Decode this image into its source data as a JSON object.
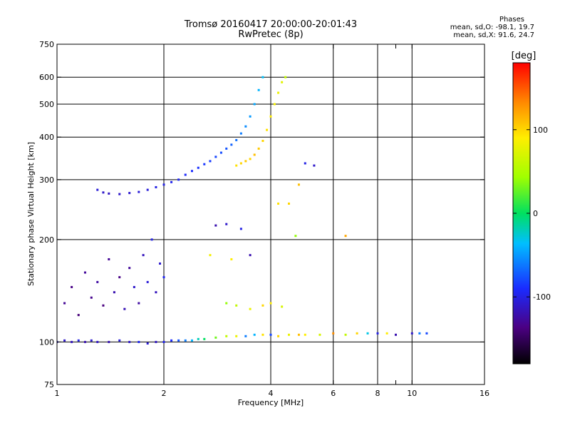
{
  "header": {
    "title_line1": "Tromsø 20160417 20:00:00-20:01:43",
    "title_line2": "RwPretec (8p)"
  },
  "stats": {
    "heading": "Phases",
    "o_line": "mean, sd,O:  -98.1, 19.7",
    "x_line": "mean, sd,X:   91.6, 24.7"
  },
  "chart_data": {
    "type": "scatter",
    "xlabel": "Frequency [MHz]",
    "ylabel": "Stationary phase Virtual Height [km]",
    "xscale": "log",
    "yscale": "log",
    "xlim": [
      1,
      16
    ],
    "ylim": [
      75,
      750
    ],
    "xticks": [
      1,
      2,
      4,
      6,
      8,
      9,
      10,
      16
    ],
    "xtick_labels": [
      "1",
      "2",
      "4",
      "6",
      "8",
      "",
      "10",
      "16"
    ],
    "yticks": [
      75,
      100,
      200,
      300,
      400,
      500,
      600,
      750
    ],
    "ytick_labels": [
      "75",
      "100",
      "200",
      "300",
      "400",
      "500",
      "600",
      "750"
    ],
    "grid_x": [
      2,
      4,
      6,
      8,
      10
    ],
    "grid_y": [
      100,
      200,
      300,
      400,
      500,
      600
    ],
    "grid": true,
    "colorbar": {
      "label": "[deg]",
      "range": [
        -180,
        180
      ],
      "ticks": [
        -100,
        0,
        100
      ],
      "tick_labels": [
        "-100",
        "0",
        "100"
      ],
      "colormap": "rainbow"
    },
    "series": [
      {
        "values": [
          [
            1.0,
            100,
            -105
          ],
          [
            1.05,
            101,
            -110
          ],
          [
            1.1,
            100,
            -115
          ],
          [
            1.15,
            101,
            -100
          ],
          [
            1.2,
            100,
            -120
          ],
          [
            1.25,
            101,
            -108
          ],
          [
            1.3,
            100,
            -112
          ],
          [
            1.4,
            100,
            -118
          ],
          [
            1.5,
            101,
            -104
          ],
          [
            1.6,
            100,
            -110
          ],
          [
            1.7,
            100,
            -95
          ],
          [
            1.8,
            99,
            -106
          ],
          [
            1.9,
            100,
            -112
          ],
          [
            2.0,
            100,
            -98
          ],
          [
            2.1,
            101,
            -90
          ],
          [
            2.2,
            101,
            -75
          ],
          [
            2.3,
            101,
            -60
          ],
          [
            2.4,
            101,
            -40
          ],
          [
            2.5,
            102,
            -20
          ],
          [
            2.6,
            102,
            0
          ],
          [
            2.8,
            103,
            30
          ],
          [
            3.0,
            104,
            60
          ],
          [
            3.2,
            104,
            80
          ],
          [
            3.4,
            104,
            -60
          ],
          [
            3.6,
            105,
            -40
          ],
          [
            3.8,
            105,
            95
          ],
          [
            4.0,
            105,
            -80
          ],
          [
            4.2,
            104,
            100
          ],
          [
            4.5,
            105,
            80
          ],
          [
            4.8,
            105,
            110
          ],
          [
            5.0,
            105,
            90
          ],
          [
            5.5,
            105,
            70
          ],
          [
            6.0,
            106,
            130
          ],
          [
            6.5,
            105,
            60
          ],
          [
            7.0,
            106,
            100
          ],
          [
            7.5,
            106,
            -30
          ],
          [
            8.0,
            106,
            -100
          ],
          [
            8.5,
            106,
            90
          ],
          [
            9.0,
            105,
            -120
          ],
          [
            10.0,
            106,
            -110
          ],
          [
            10.5,
            106,
            -60
          ],
          [
            11.0,
            106,
            -80
          ]
        ]
      },
      {
        "values": [
          [
            1.05,
            130,
            -130
          ],
          [
            1.1,
            145,
            -135
          ],
          [
            1.15,
            120,
            -140
          ],
          [
            1.2,
            160,
            -128
          ],
          [
            1.25,
            135,
            -132
          ],
          [
            1.3,
            150,
            -125
          ],
          [
            1.35,
            128,
            -138
          ],
          [
            1.4,
            175,
            -130
          ],
          [
            1.45,
            140,
            -120
          ],
          [
            1.5,
            155,
            -135
          ],
          [
            1.55,
            125,
            -118
          ],
          [
            1.6,
            165,
            -128
          ],
          [
            1.65,
            145,
            -110
          ],
          [
            1.7,
            130,
            -125
          ],
          [
            1.75,
            180,
            -115
          ],
          [
            1.8,
            150,
            -105
          ],
          [
            1.85,
            200,
            -100
          ],
          [
            1.9,
            140,
            -115
          ],
          [
            1.95,
            170,
            -108
          ],
          [
            2.0,
            155,
            -95
          ]
        ]
      },
      {
        "values": [
          [
            1.3,
            280,
            -105
          ],
          [
            1.35,
            275,
            -110
          ],
          [
            1.4,
            273,
            -112
          ],
          [
            1.5,
            272,
            -110
          ],
          [
            1.6,
            274,
            -108
          ],
          [
            1.7,
            276,
            -105
          ],
          [
            1.8,
            280,
            -104
          ],
          [
            1.9,
            285,
            -100
          ],
          [
            2.0,
            290,
            -100
          ],
          [
            2.1,
            295,
            -98
          ],
          [
            2.2,
            300,
            -95
          ],
          [
            2.3,
            310,
            -92
          ],
          [
            2.4,
            318,
            -90
          ],
          [
            2.5,
            325,
            -88
          ],
          [
            2.6,
            333,
            -86
          ],
          [
            2.7,
            340,
            -84
          ],
          [
            2.8,
            350,
            -80
          ],
          [
            2.9,
            360,
            -78
          ],
          [
            3.0,
            370,
            -75
          ],
          [
            3.1,
            380,
            -70
          ],
          [
            3.2,
            392,
            -65
          ],
          [
            3.3,
            410,
            -60
          ],
          [
            3.4,
            430,
            -55
          ],
          [
            3.5,
            460,
            -50
          ],
          [
            3.6,
            500,
            -45
          ],
          [
            3.7,
            550,
            -40
          ],
          [
            3.8,
            600,
            -35
          ]
        ]
      },
      {
        "values": [
          [
            3.2,
            330,
            95
          ],
          [
            3.3,
            335,
            100
          ],
          [
            3.4,
            340,
            105
          ],
          [
            3.5,
            345,
            100
          ],
          [
            3.6,
            355,
            110
          ],
          [
            3.7,
            370,
            105
          ],
          [
            3.8,
            390,
            100
          ],
          [
            3.9,
            420,
            95
          ],
          [
            4.0,
            460,
            90
          ],
          [
            4.1,
            500,
            85
          ],
          [
            4.2,
            540,
            80
          ],
          [
            4.3,
            580,
            75
          ],
          [
            4.4,
            600,
            60
          ]
        ]
      },
      {
        "values": [
          [
            3.0,
            130,
            40
          ],
          [
            3.2,
            128,
            60
          ],
          [
            3.5,
            125,
            80
          ],
          [
            3.8,
            128,
            100
          ],
          [
            4.0,
            130,
            90
          ],
          [
            4.3,
            127,
            70
          ]
        ]
      },
      {
        "values": [
          [
            4.2,
            255,
            95
          ],
          [
            4.5,
            255,
            100
          ],
          [
            4.8,
            290,
            110
          ],
          [
            5.0,
            335,
            -100
          ],
          [
            5.3,
            330,
            -110
          ]
        ]
      },
      {
        "values": [
          [
            2.8,
            220,
            -120
          ],
          [
            3.0,
            222,
            -110
          ],
          [
            3.3,
            215,
            -100
          ],
          [
            2.7,
            180,
            85
          ],
          [
            3.1,
            175,
            90
          ],
          [
            3.5,
            180,
            -120
          ],
          [
            4.7,
            205,
            40
          ],
          [
            6.5,
            205,
            120
          ]
        ]
      }
    ]
  }
}
